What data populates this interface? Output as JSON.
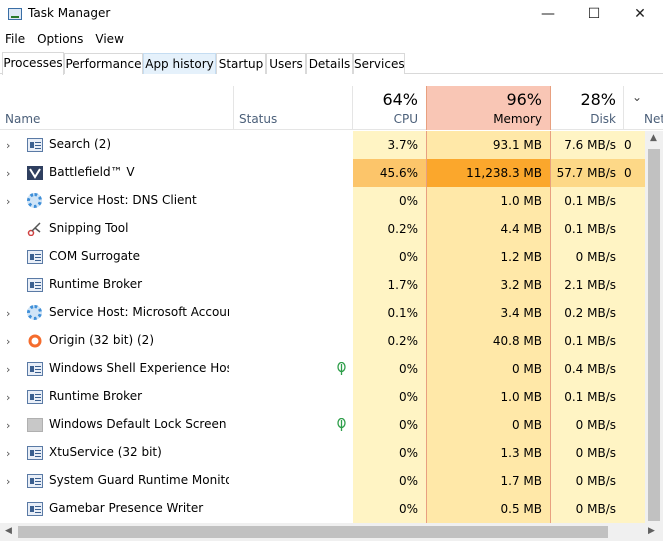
{
  "window": {
    "title": "Task Manager",
    "minimize": "—",
    "maximize": "☐",
    "close": "✕"
  },
  "menu": [
    "File",
    "Options",
    "View"
  ],
  "tabs": [
    "Processes",
    "Performance",
    "App history",
    "Startup",
    "Users",
    "Details",
    "Services"
  ],
  "columns": {
    "name": "Name",
    "status": "Status",
    "cpu": {
      "pct": "64%",
      "label": "CPU"
    },
    "memory": {
      "pct": "96%",
      "label": "Memory"
    },
    "disk": {
      "pct": "28%",
      "label": "Disk"
    },
    "network": {
      "label": "Net"
    }
  },
  "processes": [
    {
      "name": "Search (2)",
      "expandable": true,
      "icon": "window-icon",
      "cpu": "3.7%",
      "memory": "93.1 MB",
      "disk": "7.6 MB/s",
      "net": "0",
      "suspended": false
    },
    {
      "name": "Battlefield™ V",
      "expandable": true,
      "icon": "battlefield-icon",
      "cpu": "45.6%",
      "memory": "11,238.3 MB",
      "disk": "57.7 MB/s",
      "net": "0",
      "suspended": false
    },
    {
      "name": "Service Host: DNS Client",
      "expandable": true,
      "icon": "gear-icon",
      "cpu": "0%",
      "memory": "1.0 MB",
      "disk": "0.1 MB/s",
      "net": "",
      "suspended": false
    },
    {
      "name": "Snipping Tool",
      "expandable": false,
      "icon": "scissors-icon",
      "cpu": "0.2%",
      "memory": "4.4 MB",
      "disk": "0.1 MB/s",
      "net": "",
      "suspended": false
    },
    {
      "name": "COM Surrogate",
      "expandable": false,
      "icon": "window-icon",
      "cpu": "0%",
      "memory": "1.2 MB",
      "disk": "0 MB/s",
      "net": "",
      "suspended": false
    },
    {
      "name": "Runtime Broker",
      "expandable": false,
      "icon": "window-icon",
      "cpu": "1.7%",
      "memory": "3.2 MB",
      "disk": "2.1 MB/s",
      "net": "",
      "suspended": false
    },
    {
      "name": "Service Host: Microsoft Accoun...",
      "expandable": true,
      "icon": "gear-icon",
      "cpu": "0.1%",
      "memory": "3.4 MB",
      "disk": "0.2 MB/s",
      "net": "",
      "suspended": false
    },
    {
      "name": "Origin (32 bit) (2)",
      "expandable": true,
      "icon": "origin-icon",
      "cpu": "0.2%",
      "memory": "40.8 MB",
      "disk": "0.1 MB/s",
      "net": "",
      "suspended": false
    },
    {
      "name": "Windows Shell Experience Host",
      "expandable": true,
      "icon": "window-icon",
      "cpu": "0%",
      "memory": "0 MB",
      "disk": "0.4 MB/s",
      "net": "",
      "suspended": true
    },
    {
      "name": "Runtime Broker",
      "expandable": true,
      "icon": "window-icon",
      "cpu": "0%",
      "memory": "1.0 MB",
      "disk": "0.1 MB/s",
      "net": "",
      "suspended": false
    },
    {
      "name": "Windows Default Lock Screen",
      "expandable": true,
      "icon": "blank-icon",
      "cpu": "0%",
      "memory": "0 MB",
      "disk": "0 MB/s",
      "net": "",
      "suspended": true
    },
    {
      "name": "XtuService (32 bit)",
      "expandable": true,
      "icon": "window-icon",
      "cpu": "0%",
      "memory": "1.3 MB",
      "disk": "0 MB/s",
      "net": "",
      "suspended": false
    },
    {
      "name": "System Guard Runtime Monitor...",
      "expandable": true,
      "icon": "window-icon",
      "cpu": "0%",
      "memory": "1.7 MB",
      "disk": "0 MB/s",
      "net": "",
      "suspended": false
    },
    {
      "name": "Gamebar Presence Writer",
      "expandable": false,
      "icon": "window-icon",
      "cpu": "0%",
      "memory": "0.5 MB",
      "disk": "0 MB/s",
      "net": "",
      "suspended": false
    }
  ]
}
